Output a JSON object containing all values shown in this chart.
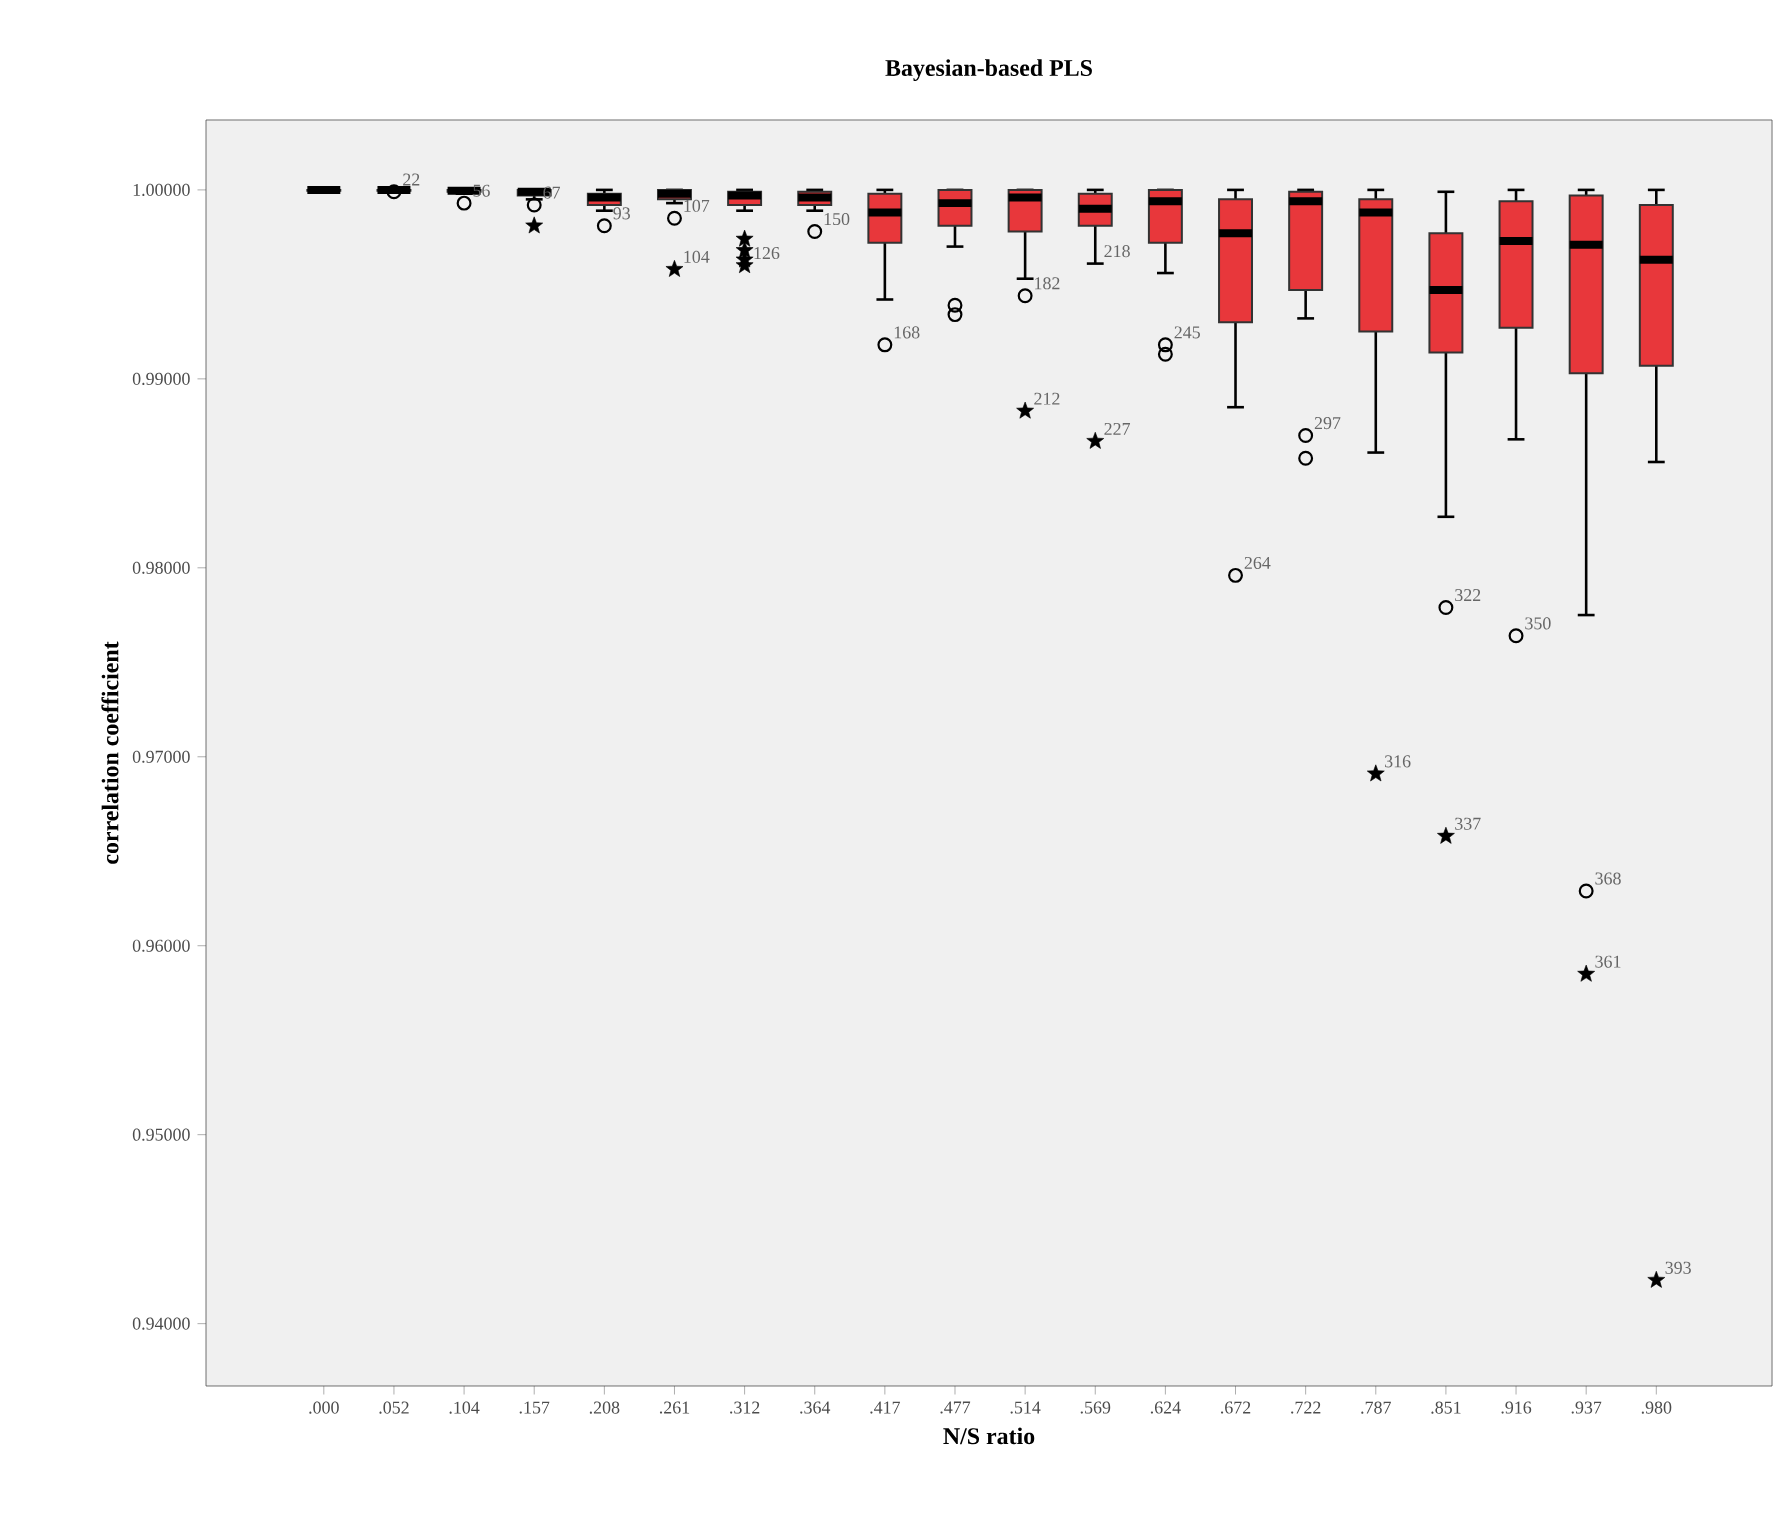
{
  "chart_data": {
    "type": "box",
    "title": "Bayesian-based PLS",
    "xlabel": "N/S ratio",
    "ylabel": "correlation coefficient",
    "categories": [
      ".000",
      ".052",
      ".104",
      ".157",
      ".208",
      ".261",
      ".312",
      ".364",
      ".417",
      ".477",
      ".514",
      ".569",
      ".624",
      ".672",
      ".722",
      ".787",
      ".851",
      ".916",
      ".937",
      ".980"
    ],
    "color": "#e8373b",
    "boxes": [
      {
        "low": 0.9999,
        "q1": 0.99995,
        "median": 1.0,
        "q3": 1.0,
        "high": 1.0
      },
      {
        "low": 0.9999,
        "q1": 0.99995,
        "median": 1.0,
        "q3": 1.0,
        "high": 1.0
      },
      {
        "low": 0.9998,
        "q1": 0.9999,
        "median": 0.99995,
        "q3": 1.0,
        "high": 1.0
      },
      {
        "low": 0.9995,
        "q1": 0.9997,
        "median": 0.9999,
        "q3": 1.0,
        "high": 1.0
      },
      {
        "low": 0.9989,
        "q1": 0.9992,
        "median": 0.9996,
        "q3": 0.9998,
        "high": 1.0
      },
      {
        "low": 0.9993,
        "q1": 0.9995,
        "median": 0.9998,
        "q3": 1.0,
        "high": 1.0
      },
      {
        "low": 0.9989,
        "q1": 0.9992,
        "median": 0.9997,
        "q3": 0.9999,
        "high": 1.0
      },
      {
        "low": 0.9989,
        "q1": 0.9992,
        "median": 0.9996,
        "q3": 0.9999,
        "high": 1.0
      },
      {
        "low": 0.9942,
        "q1": 0.9972,
        "median": 0.9988,
        "q3": 0.9998,
        "high": 1.0
      },
      {
        "low": 0.997,
        "q1": 0.9981,
        "median": 0.9993,
        "q3": 1.0,
        "high": 1.0
      },
      {
        "low": 0.9953,
        "q1": 0.9978,
        "median": 0.9996,
        "q3": 1.0,
        "high": 1.0
      },
      {
        "low": 0.9961,
        "q1": 0.9981,
        "median": 0.999,
        "q3": 0.9998,
        "high": 1.0
      },
      {
        "low": 0.9956,
        "q1": 0.9972,
        "median": 0.9994,
        "q3": 1.0,
        "high": 1.0
      },
      {
        "low": 0.9885,
        "q1": 0.993,
        "median": 0.9977,
        "q3": 0.9995,
        "high": 1.0
      },
      {
        "low": 0.9932,
        "q1": 0.9947,
        "median": 0.9994,
        "q3": 0.9999,
        "high": 1.0
      },
      {
        "low": 0.9861,
        "q1": 0.9925,
        "median": 0.9988,
        "q3": 0.9995,
        "high": 1.0
      },
      {
        "low": 0.9827,
        "q1": 0.9914,
        "median": 0.9947,
        "q3": 0.9977,
        "high": 0.9999
      },
      {
        "low": 0.9868,
        "q1": 0.9927,
        "median": 0.9973,
        "q3": 0.9994,
        "high": 1.0
      },
      {
        "low": 0.9775,
        "q1": 0.9903,
        "median": 0.9971,
        "q3": 0.9997,
        "high": 1.0
      },
      {
        "low": 0.9856,
        "q1": 0.9907,
        "median": 0.9963,
        "q3": 0.9992,
        "high": 1.0
      }
    ],
    "series": [
      {
        "type": "scatter",
        "marker": "circle",
        "color": "#000000",
        "x": [
          ".052",
          ".104",
          ".157",
          ".208",
          ".261",
          ".364",
          ".417",
          ".477",
          ".477",
          ".514",
          ".624",
          ".624",
          ".672",
          ".722",
          ".722",
          ".851",
          ".916",
          ".937"
        ],
        "values": [
          0.9999,
          0.9993,
          0.9992,
          0.9981,
          0.9985,
          0.9978,
          0.9918,
          0.9939,
          0.9934,
          0.9944,
          0.9918,
          0.9913,
          0.9796,
          0.987,
          0.9858,
          0.9779,
          0.9764,
          0.9629
        ]
      },
      {
        "type": "scatter",
        "marker": "star",
        "color": "#000000",
        "x": [
          ".157",
          ".261",
          ".312",
          ".312",
          ".312",
          ".312",
          ".514",
          ".569",
          ".787",
          ".851",
          ".937",
          ".980"
        ],
        "values": [
          0.9981,
          0.9958,
          0.9974,
          0.9968,
          0.9963,
          0.996,
          0.9883,
          0.9867,
          0.9691,
          0.9658,
          0.9585,
          0.9423
        ]
      }
    ],
    "ylim": [
      0.9367,
      1.0037
    ],
    "yticks": [
      {
        "value": 0.94,
        "label": "0.94000"
      },
      {
        "value": 0.95,
        "label": "0.95000"
      },
      {
        "value": 0.96,
        "label": "0.96000"
      },
      {
        "value": 0.97,
        "label": "0.97000"
      },
      {
        "value": 0.98,
        "label": "0.98000"
      },
      {
        "value": 0.99,
        "label": "0.99000"
      },
      {
        "value": 1.0,
        "label": "1.00000"
      }
    ],
    "annotations": [
      {
        "text": "22",
        "x": ".052",
        "y": 0.9999
      },
      {
        "text": "56",
        "x": ".104",
        "y": 0.9993
      },
      {
        "text": "67",
        "x": ".157",
        "y": 0.9992
      },
      {
        "text": "93",
        "x": ".208",
        "y": 0.9981
      },
      {
        "text": "107",
        "x": ".261",
        "y": 0.9985
      },
      {
        "text": "104",
        "x": ".261",
        "y": 0.9958
      },
      {
        "text": "126",
        "x": ".312",
        "y": 0.996
      },
      {
        "text": "150",
        "x": ".364",
        "y": 0.9978
      },
      {
        "text": "168",
        "x": ".417",
        "y": 0.9918
      },
      {
        "text": "182",
        "x": ".514",
        "y": 0.9944
      },
      {
        "text": "218",
        "x": ".569",
        "y": 0.9961
      },
      {
        "text": "212",
        "x": ".514",
        "y": 0.9883
      },
      {
        "text": "227",
        "x": ".569",
        "y": 0.9867
      },
      {
        "text": "245",
        "x": ".624",
        "y": 0.9918
      },
      {
        "text": "264",
        "x": ".672",
        "y": 0.9796
      },
      {
        "text": "297",
        "x": ".722",
        "y": 0.987
      },
      {
        "text": "316",
        "x": ".787",
        "y": 0.9691
      },
      {
        "text": "322",
        "x": ".851",
        "y": 0.9779
      },
      {
        "text": "337",
        "x": ".851",
        "y": 0.9658
      },
      {
        "text": "350",
        "x": ".916",
        "y": 0.9764
      },
      {
        "text": "368",
        "x": ".937",
        "y": 0.9629
      },
      {
        "text": "361",
        "x": ".937",
        "y": 0.9585
      },
      {
        "text": "393",
        "x": ".980",
        "y": 0.9423
      }
    ]
  }
}
